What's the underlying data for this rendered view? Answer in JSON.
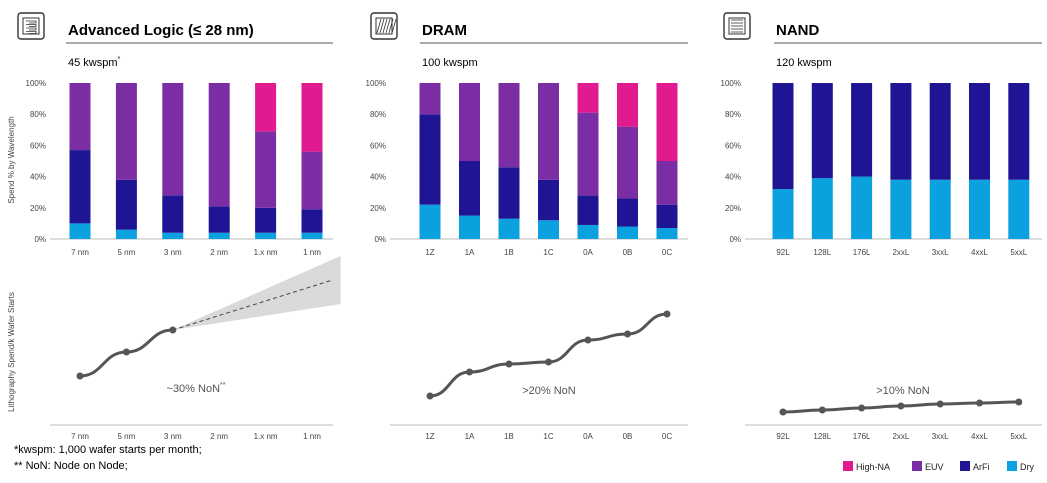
{
  "colors": {
    "high_na": "#E21A8F",
    "euv": "#7B2EA4",
    "arfi": "#1E1494",
    "dry": "#0AA1DE",
    "line": "#555555",
    "cone": "#d9d9d9",
    "text": "#000000",
    "axis_text": "#444444"
  },
  "y_axis_label_top": "Spend % by Wavelength",
  "y_axis_label_bottom": "Lithography Spend/k Wafer Starts",
  "legend": [
    {
      "key": "high_na",
      "label": "High-NA"
    },
    {
      "key": "euv",
      "label": "EUV"
    },
    {
      "key": "arfi",
      "label": "ArFi"
    },
    {
      "key": "dry",
      "label": "Dry"
    }
  ],
  "footnotes": [
    "*kwspm: 1,000 wafer starts per month;",
    "** NoN: Node on Node;"
  ],
  "chart_data": [
    {
      "type": "bar",
      "panel_icon": "logic-chip-icon",
      "title": "Advanced Logic (≤ 28 nm)",
      "capacity": "45 kwspm",
      "capacity_mark": "*",
      "stacked": true,
      "ylim": [
        0,
        100
      ],
      "yticks": [
        "0%",
        "20%",
        "40%",
        "60%",
        "80%",
        "100%"
      ],
      "categories": [
        "7 nm",
        "5 nm",
        "3 nm",
        "2 nm",
        "1.x nm",
        "1 nm"
      ],
      "series": [
        {
          "name": "Dry",
          "key": "dry",
          "values": [
            10,
            6,
            4,
            4,
            4,
            4
          ]
        },
        {
          "name": "ArFi",
          "key": "arfi",
          "values": [
            47,
            32,
            24,
            17,
            16,
            15
          ]
        },
        {
          "name": "EUV",
          "key": "euv",
          "values": [
            43,
            62,
            72,
            79,
            49,
            37
          ]
        },
        {
          "name": "High-NA",
          "key": "high_na",
          "values": [
            0,
            0,
            0,
            0,
            31,
            44
          ]
        }
      ],
      "trend": {
        "type": "line",
        "values": [
          20,
          32,
          43,
          null,
          null,
          null
        ],
        "projection": {
          "from": 2,
          "to": 6,
          "value": 68,
          "cone_low": 56,
          "cone_high": 80
        },
        "annotation": "~30% NoN",
        "annotation_mark": "**",
        "ylim": [
          0,
          100
        ]
      }
    },
    {
      "type": "bar",
      "panel_icon": "dram-chip-icon",
      "title": "DRAM",
      "capacity": "100 kwspm",
      "capacity_mark": "",
      "stacked": true,
      "ylim": [
        0,
        100
      ],
      "yticks": [
        "0%",
        "20%",
        "40%",
        "60%",
        "80%",
        "100%"
      ],
      "categories": [
        "1Z",
        "1A",
        "1B",
        "1C",
        "0A",
        "0B",
        "0C"
      ],
      "series": [
        {
          "name": "Dry",
          "key": "dry",
          "values": [
            22,
            15,
            13,
            12,
            9,
            8,
            7
          ]
        },
        {
          "name": "ArFi",
          "key": "arfi",
          "values": [
            58,
            35,
            33,
            26,
            19,
            18,
            15
          ]
        },
        {
          "name": "EUV",
          "key": "euv",
          "values": [
            20,
            50,
            54,
            62,
            53,
            46,
            28
          ]
        },
        {
          "name": "High-NA",
          "key": "high_na",
          "values": [
            0,
            0,
            0,
            0,
            19,
            28,
            50
          ]
        }
      ],
      "trend": {
        "type": "line",
        "values": [
          10,
          22,
          26,
          27,
          38,
          41,
          51
        ],
        "annotation": ">20% NoN",
        "annotation_mark": "",
        "ylim": [
          0,
          100
        ]
      }
    },
    {
      "type": "bar",
      "panel_icon": "nand-chip-icon",
      "title": "NAND",
      "capacity": "120 kwspm",
      "capacity_mark": "",
      "stacked": true,
      "ylim": [
        0,
        100
      ],
      "yticks": [
        "0%",
        "20%",
        "40%",
        "60%",
        "80%",
        "100%"
      ],
      "categories": [
        "92L",
        "128L",
        "176L",
        "2xxL",
        "3xxL",
        "4xxL",
        "5xxL"
      ],
      "series": [
        {
          "name": "Dry",
          "key": "dry",
          "values": [
            32,
            39,
            40,
            38,
            38,
            38,
            38
          ]
        },
        {
          "name": "ArFi",
          "key": "arfi",
          "values": [
            68,
            61,
            60,
            62,
            62,
            62,
            62
          ]
        },
        {
          "name": "EUV",
          "key": "euv",
          "values": [
            0,
            0,
            0,
            0,
            0,
            0,
            0
          ]
        },
        {
          "name": "High-NA",
          "key": "high_na",
          "values": [
            0,
            0,
            0,
            0,
            0,
            0,
            0
          ]
        }
      ],
      "trend": {
        "type": "line",
        "values": [
          2,
          3,
          4,
          5,
          6,
          6.5,
          7
        ],
        "annotation": ">10% NoN",
        "annotation_mark": "",
        "ylim": [
          0,
          100
        ]
      }
    }
  ]
}
